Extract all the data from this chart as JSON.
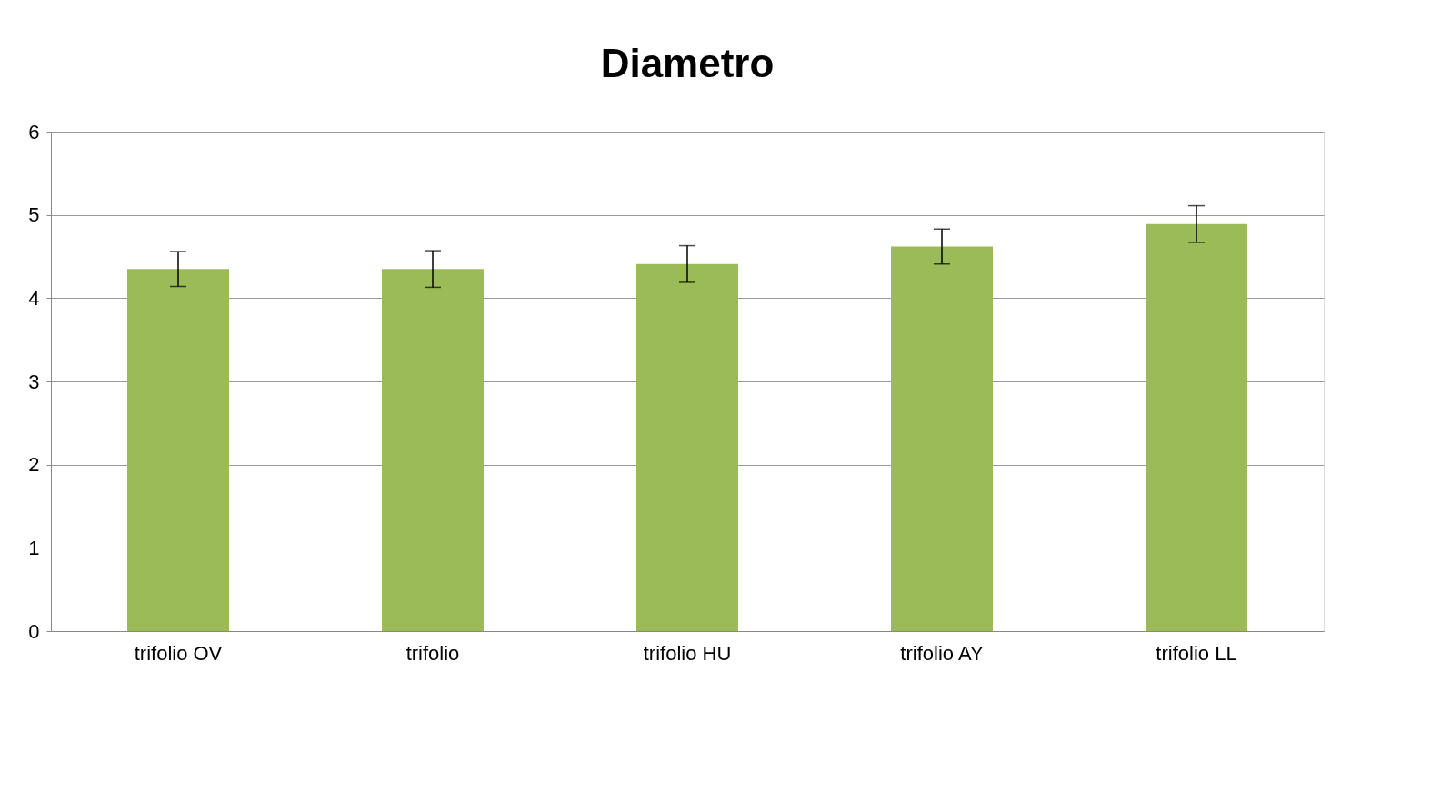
{
  "chart_data": {
    "type": "bar",
    "title": "Diametro",
    "categories": [
      "trifolio OV",
      "trifolio",
      "trifolio HU",
      "trifolio AY",
      "trifolio LL"
    ],
    "values": [
      4.35,
      4.35,
      4.41,
      4.62,
      4.89
    ],
    "errors": [
      0.21,
      0.22,
      0.22,
      0.21,
      0.22
    ],
    "color": "#9bbb59",
    "ylim": [
      0,
      6
    ],
    "yticks": [
      0,
      1,
      2,
      3,
      4,
      5,
      6
    ],
    "grid": "y"
  }
}
